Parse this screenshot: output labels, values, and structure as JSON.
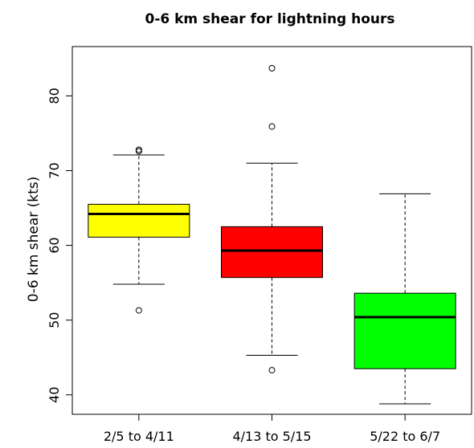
{
  "chart_data": {
    "type": "boxplot",
    "title": "0-6 km shear for lightning hours",
    "xlabel": "",
    "ylabel": "0-6 km shear (kts)",
    "ylim": [
      37.4,
      86.6
    ],
    "yticks": [
      40,
      50,
      60,
      70,
      80
    ],
    "grid": false,
    "categories": [
      "2/5 to 4/11",
      "4/13 to 5/15",
      "5/22 to 6/7"
    ],
    "boxes": [
      {
        "label": "2/5 to 4/11",
        "whisker_low": 54.8,
        "q1": 61.1,
        "median": 64.2,
        "q3": 65.5,
        "whisker_high": 72.1,
        "outliers": [
          72.6,
          72.8,
          51.3
        ],
        "color": "#ffff00"
      },
      {
        "label": "4/13 to 5/15",
        "whisker_low": 45.3,
        "q1": 55.7,
        "median": 59.3,
        "q3": 62.5,
        "whisker_high": 71.0,
        "outliers": [
          83.7,
          75.9,
          43.3
        ],
        "color": "#ff0000"
      },
      {
        "label": "5/22 to 6/7",
        "whisker_low": 38.8,
        "q1": 43.5,
        "median": 50.4,
        "q3": 53.6,
        "whisker_high": 66.9,
        "outliers": [],
        "color": "#00ff00"
      }
    ]
  }
}
